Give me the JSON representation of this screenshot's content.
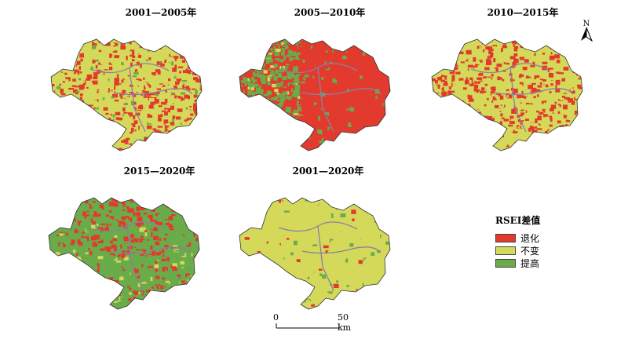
{
  "panels": [
    {
      "title": "2001—2005年",
      "dominant": "unchanged",
      "mix": {
        "degraded": 0.35,
        "unchanged": 0.6,
        "improved": 0.05
      }
    },
    {
      "title": "2005—2010年",
      "dominant": "degraded",
      "mix": {
        "degraded": 0.6,
        "unchanged": 0.05,
        "improved": 0.35
      }
    },
    {
      "title": "2010—2015年",
      "dominant": "unchanged",
      "mix": {
        "degraded": 0.4,
        "unchanged": 0.6,
        "improved": 0.0
      }
    },
    {
      "title": "2015—2020年",
      "dominant": "improved",
      "mix": {
        "degraded": 0.2,
        "unchanged": 0.1,
        "improved": 0.7
      }
    },
    {
      "title": "2001—2020年",
      "dominant": "unchanged",
      "mix": {
        "degraded": 0.03,
        "unchanged": 0.92,
        "improved": 0.05
      }
    }
  ],
  "legend": {
    "title": "RSEI差值",
    "items": [
      {
        "label": "退化",
        "color": "#e23b2e"
      },
      {
        "label": "不变",
        "color": "#d4d95a"
      },
      {
        "label": "提高",
        "color": "#6aab4a"
      }
    ]
  },
  "scale_bar": {
    "start_label": "0",
    "end_label": "50 km"
  },
  "north_arrow": {
    "label": "N"
  },
  "colors": {
    "degraded": "#e23b2e",
    "unchanged": "#d4d95a",
    "improved": "#6aab4a",
    "boundary": "#8a7fa8"
  }
}
